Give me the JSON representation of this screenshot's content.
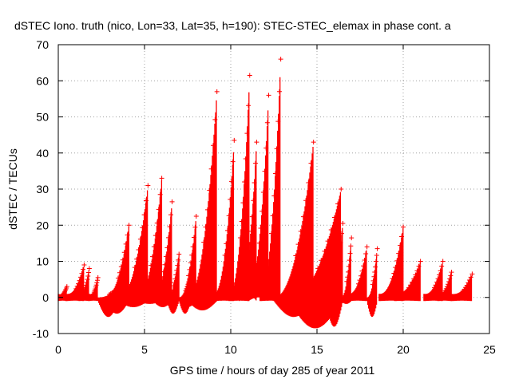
{
  "chart_data": {
    "type": "scatter",
    "title": "dSTEC Iono. truth (nico, Lon=33, Lat=35, h=190): STEC-STEC_elemax in phase cont. a",
    "xlabel": "GPS time / hours of day 285 of year 2011",
    "ylabel": "dSTEC  / TECUs",
    "xlim": [
      0,
      25
    ],
    "ylim": [
      -10,
      70
    ],
    "xticks": [
      "0",
      "5",
      "10",
      "15",
      "20",
      "25"
    ],
    "yticks": [
      "-10",
      "0",
      "10",
      "20",
      "30",
      "40",
      "50",
      "60",
      "70"
    ],
    "grid": true,
    "series": [
      {
        "color": "#ff0000",
        "marker": "plus",
        "arcs": [
          {
            "start": 0.0,
            "end": 0.5,
            "peak": 3,
            "low": -1
          },
          {
            "start": 0.45,
            "end": 1.5,
            "peak": 9,
            "low": -1
          },
          {
            "start": 1.2,
            "end": 1.8,
            "peak": 8,
            "low": -1
          },
          {
            "start": 1.8,
            "end": 2.3,
            "peak": 5.5,
            "low": -1
          },
          {
            "start": 2.3,
            "end": 3.5,
            "peak": 3,
            "low": -6
          },
          {
            "start": 2.7,
            "end": 4.1,
            "peak": 20,
            "low": -5
          },
          {
            "start": 3.5,
            "end": 5.2,
            "peak": 31,
            "low": -3
          },
          {
            "start": 4.6,
            "end": 6.0,
            "peak": 33,
            "low": -2
          },
          {
            "start": 5.5,
            "end": 6.6,
            "peak": 26.5,
            "low": -3
          },
          {
            "start": 6.3,
            "end": 7.0,
            "peak": 12,
            "low": -5
          },
          {
            "start": 7.0,
            "end": 7.7,
            "peak": 7,
            "low": -5
          },
          {
            "start": 7.0,
            "end": 8.0,
            "peak": 22.5,
            "low": -3
          },
          {
            "start": 7.5,
            "end": 9.2,
            "peak": 57,
            "low": -4
          },
          {
            "start": 9.0,
            "end": 10.2,
            "peak": 43.5,
            "low": -1
          },
          {
            "start": 9.9,
            "end": 11.1,
            "peak": 61.5,
            "low": -1
          },
          {
            "start": 10.5,
            "end": 11.5,
            "peak": 43,
            "low": 1
          },
          {
            "start": 11.0,
            "end": 12.2,
            "peak": 56,
            "low": 0
          },
          {
            "start": 11.7,
            "end": 12.9,
            "peak": 66,
            "low": -1
          },
          {
            "start": 12.5,
            "end": 14.8,
            "peak": 43,
            "low": -6
          },
          {
            "start": 13.4,
            "end": 16.4,
            "peak": 30,
            "low": -9.5
          },
          {
            "start": 15.5,
            "end": 16.5,
            "peak": 20.5,
            "low": -9
          },
          {
            "start": 16.4,
            "end": 17.0,
            "peak": 16.5,
            "low": -2
          },
          {
            "start": 16.8,
            "end": 17.9,
            "peak": 14,
            "low": -1
          },
          {
            "start": 17.9,
            "end": 18.5,
            "peak": 13.5,
            "low": -6
          },
          {
            "start": 18.6,
            "end": 20.0,
            "peak": 19.5,
            "low": -1
          },
          {
            "start": 19.5,
            "end": 21.0,
            "peak": 10,
            "low": -1
          },
          {
            "start": 21.2,
            "end": 22.3,
            "peak": 10,
            "low": -1
          },
          {
            "start": 22.0,
            "end": 22.8,
            "peak": 7,
            "low": -1
          },
          {
            "start": 22.8,
            "end": 24.0,
            "peak": 6.5,
            "low": -1
          }
        ]
      }
    ]
  }
}
